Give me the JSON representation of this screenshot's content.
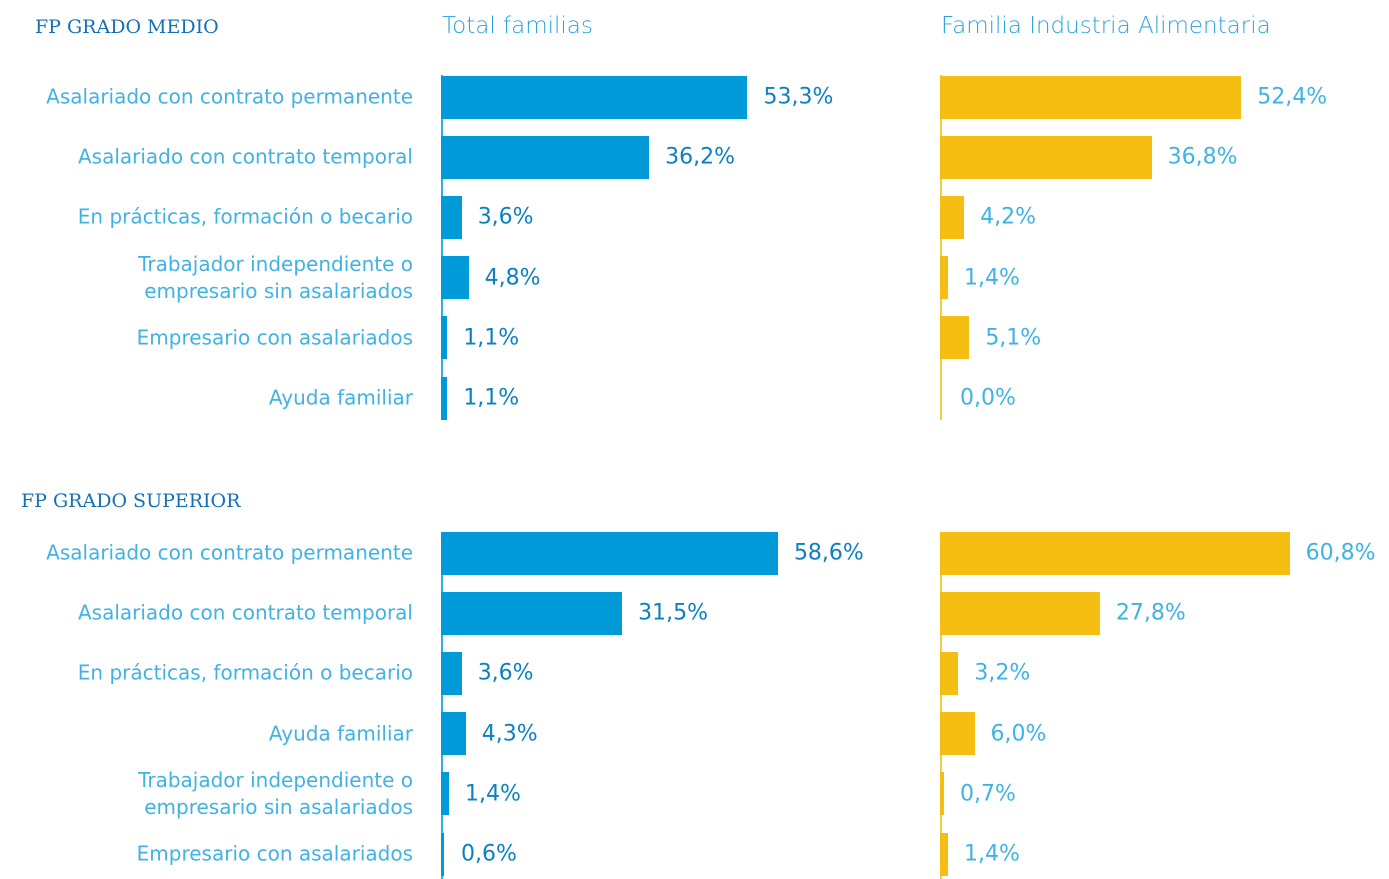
{
  "chart_data": [
    {
      "type": "bar",
      "section": "FP GRADO MEDIO",
      "categories": [
        "Asalariado con contrato permanente",
        "Asalariado con contrato temporal",
        "En prácticas, formación o becario",
        "Trabajador independiente o empresario sin asalariados",
        "Empresario con asalariados",
        "Ayuda familiar"
      ],
      "series": [
        {
          "name": "Total familias",
          "color": "#009ad9",
          "values": [
            53.3,
            36.2,
            3.6,
            4.8,
            1.1,
            1.1
          ],
          "value_labels": [
            "53,3%",
            "36,2%",
            "3,6%",
            "4,8%",
            "1,1%",
            "1,1%"
          ]
        },
        {
          "name": "Familia Industria Alimentaria",
          "color": "#f4bf12",
          "values": [
            52.4,
            36.8,
            4.2,
            1.4,
            5.1,
            0.0
          ],
          "value_labels": [
            "52,4%",
            "36,8%",
            "4,2%",
            "1,4%",
            "5,1%",
            "0,0%"
          ]
        }
      ]
    },
    {
      "type": "bar",
      "section": "FP GRADO SUPERIOR",
      "categories": [
        "Asalariado con contrato permanente",
        "Asalariado con contrato temporal",
        "En prácticas, formación o becario",
        "Ayuda familiar",
        "Trabajador independiente o empresario sin asalariados",
        "Empresario con asalariados"
      ],
      "series": [
        {
          "color": "#009ad9",
          "values": [
            58.6,
            31.5,
            3.6,
            4.3,
            1.4,
            0.6
          ],
          "value_labels": [
            "58,6%",
            "31,5%",
            "3,6%",
            "4,3%",
            "1,4%",
            "0,6%"
          ]
        },
        {
          "color": "#f4bf12",
          "values": [
            60.8,
            27.8,
            3.2,
            6.0,
            0.7,
            1.4
          ],
          "value_labels": [
            "60,8%",
            "27,8%",
            "3,2%",
            "6,0%",
            "0,7%",
            "1,4%"
          ]
        }
      ]
    }
  ]
}
